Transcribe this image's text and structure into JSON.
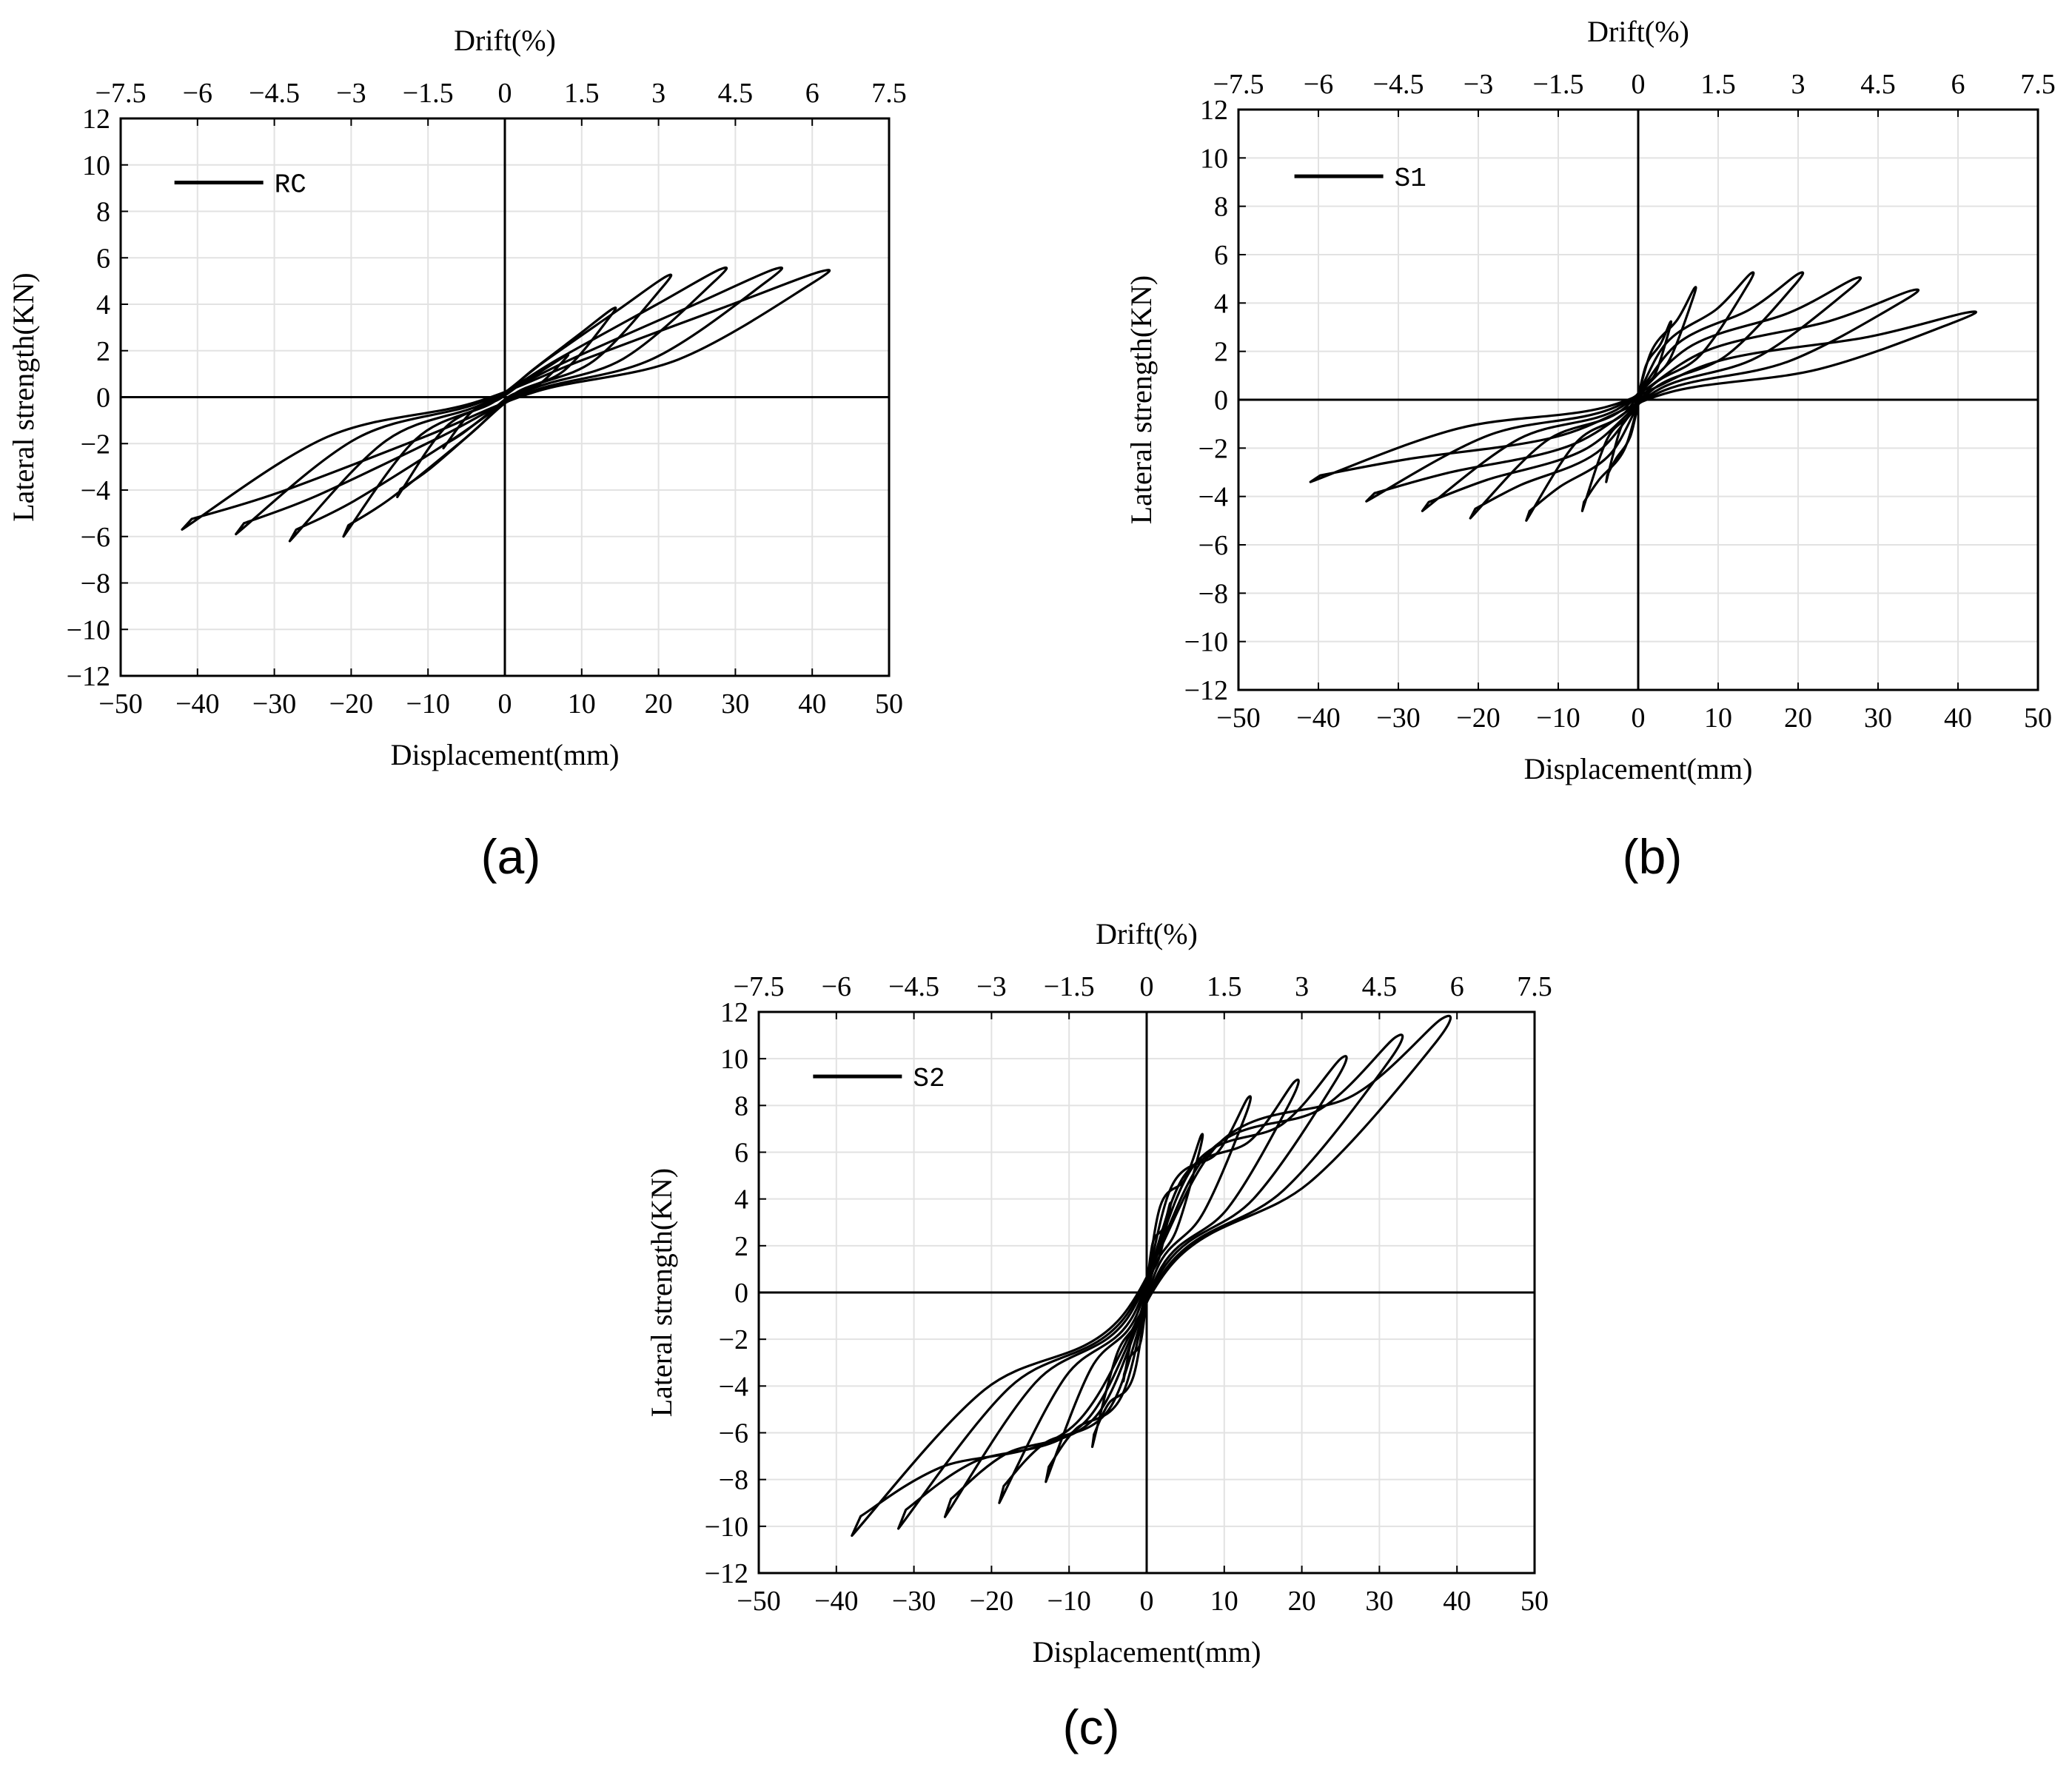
{
  "figure": {
    "captions": [
      "(a)",
      "(b)",
      "(c)"
    ]
  },
  "chart_data": [
    {
      "type": "line",
      "panel": "a",
      "xlabel": "Displacement(mm)",
      "x2label": "Drift(%)",
      "ylabel": "Lateral strength(KN)",
      "xlim": [
        -50,
        50
      ],
      "ylim": [
        -12,
        12
      ],
      "xticks": [
        "−50",
        "−40",
        "−30",
        "−20",
        "−10",
        "0",
        "10",
        "20",
        "30",
        "40",
        "50"
      ],
      "x2ticks": [
        "−7.5",
        "−6",
        "−4.5",
        "−3",
        "−1.5",
        "0",
        "1.5",
        "3",
        "4.5",
        "6",
        "7.5"
      ],
      "yticks": [
        "−12",
        "−10",
        "−8",
        "−6",
        "−4",
        "−2",
        "0",
        "2",
        "4",
        "6",
        "8",
        "10",
        "12"
      ],
      "grid": true,
      "legend_position": "top-left",
      "series": [
        {
          "name": "RC",
          "loops": [
            {
              "dmax": 8,
              "fpos": 1.8,
              "dmin": -8,
              "fneg": -2.2
            },
            {
              "dmax": 14,
              "fpos": 3.8,
              "dmin": -14,
              "fneg": -4.3
            },
            {
              "dmax": 21,
              "fpos": 5.2,
              "dmin": -21,
              "fneg": -6.0
            },
            {
              "dmax": 28,
              "fpos": 5.5,
              "dmin": -28,
              "fneg": -6.2
            },
            {
              "dmax": 35,
              "fpos": 5.5,
              "dmin": -35,
              "fneg": -5.9
            },
            {
              "dmax": 41,
              "fpos": 5.4,
              "dmin": -42,
              "fneg": -5.7
            }
          ]
        }
      ]
    },
    {
      "type": "line",
      "panel": "b",
      "xlabel": "Displacement(mm)",
      "x2label": "Drift(%)",
      "ylabel": "Lateral strength(KN)",
      "xlim": [
        -50,
        50
      ],
      "ylim": [
        -12,
        12
      ],
      "xticks": [
        "−50",
        "−40",
        "−30",
        "−20",
        "−10",
        "0",
        "10",
        "20",
        "30",
        "40",
        "50"
      ],
      "x2ticks": [
        "−7.5",
        "−6",
        "−4.5",
        "−3",
        "−1.5",
        "0",
        "1.5",
        "3",
        "4.5",
        "6",
        "7.5"
      ],
      "yticks": [
        "−12",
        "−10",
        "−8",
        "−6",
        "−4",
        "−2",
        "0",
        "2",
        "4",
        "6",
        "8",
        "10",
        "12"
      ],
      "grid": true,
      "legend_position": "top-left",
      "series": [
        {
          "name": "S1",
          "loops": [
            {
              "dmax": 4,
              "fpos": 3.2,
              "dmin": -4,
              "fneg": -3.4
            },
            {
              "dmax": 7,
              "fpos": 4.6,
              "dmin": -7,
              "fneg": -4.6
            },
            {
              "dmax": 14,
              "fpos": 5.2,
              "dmin": -14,
              "fneg": -5.0
            },
            {
              "dmax": 20,
              "fpos": 5.2,
              "dmin": -21,
              "fneg": -4.9
            },
            {
              "dmax": 27,
              "fpos": 5.0,
              "dmin": -27,
              "fneg": -4.6
            },
            {
              "dmax": 34,
              "fpos": 4.5,
              "dmin": -34,
              "fneg": -4.2
            },
            {
              "dmax": 41,
              "fpos": 3.6,
              "dmin": -41,
              "fneg": -3.4
            }
          ]
        }
      ]
    },
    {
      "type": "line",
      "panel": "c",
      "xlabel": "Displacement(mm)",
      "x2label": "Drift(%)",
      "ylabel": "Lateral strength(KN)",
      "xlim": [
        -50,
        50
      ],
      "ylim": [
        -12,
        12
      ],
      "xticks": [
        "−50",
        "−40",
        "−30",
        "−20",
        "−10",
        "0",
        "10",
        "20",
        "30",
        "40",
        "50"
      ],
      "x2ticks": [
        "−7.5",
        "−6",
        "−4.5",
        "−3",
        "−1.5",
        "0",
        "1.5",
        "3",
        "4.5",
        "6",
        "7.5"
      ],
      "yticks": [
        "−12",
        "−10",
        "−8",
        "−6",
        "−4",
        "−2",
        "0",
        "2",
        "4",
        "6",
        "8",
        "10",
        "12"
      ],
      "grid": true,
      "legend_position": "top-left",
      "series": [
        {
          "name": "S2",
          "loops": [
            {
              "dmax": 3,
              "fpos": 3.8,
              "dmin": -3,
              "fneg": -3.8
            },
            {
              "dmax": 7,
              "fpos": 6.7,
              "dmin": -7,
              "fneg": -6.6
            },
            {
              "dmax": 13,
              "fpos": 8.3,
              "dmin": -13,
              "fneg": -8.1
            },
            {
              "dmax": 19,
              "fpos": 9.0,
              "dmin": -19,
              "fneg": -9.0
            },
            {
              "dmax": 25,
              "fpos": 10.0,
              "dmin": -26,
              "fneg": -9.6
            },
            {
              "dmax": 32,
              "fpos": 10.9,
              "dmin": -32,
              "fneg": -10.1
            },
            {
              "dmax": 38,
              "fpos": 11.7,
              "dmin": -38,
              "fneg": -10.4
            }
          ]
        }
      ]
    }
  ]
}
